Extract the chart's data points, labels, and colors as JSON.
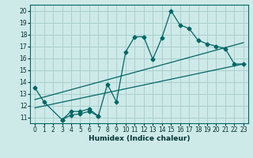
{
  "xlabel": "Humidex (Indice chaleur)",
  "background_color": "#ceeae8",
  "grid_color": "#aacfcd",
  "line_color": "#006666",
  "xlim": [
    -0.5,
    23.5
  ],
  "ylim": [
    10.5,
    20.5
  ],
  "yticks": [
    11,
    12,
    13,
    14,
    15,
    16,
    17,
    18,
    19,
    20
  ],
  "xticks": [
    0,
    1,
    2,
    3,
    4,
    5,
    6,
    7,
    8,
    9,
    10,
    11,
    12,
    13,
    14,
    15,
    16,
    17,
    18,
    19,
    20,
    21,
    22,
    23
  ],
  "series1_x": [
    0,
    1,
    3,
    4,
    5,
    6,
    7,
    8,
    9,
    10,
    11,
    12,
    13,
    14,
    15,
    16,
    17,
    18,
    19,
    20,
    21,
    22,
    23
  ],
  "series1_y": [
    13.5,
    12.3,
    10.8,
    11.5,
    11.5,
    11.7,
    11.1,
    13.8,
    12.3,
    16.5,
    17.8,
    17.8,
    15.9,
    17.7,
    20.0,
    18.8,
    18.5,
    17.5,
    17.2,
    17.0,
    16.8,
    15.5,
    15.5
  ],
  "series2_x": [
    3,
    4,
    5,
    6,
    7
  ],
  "series2_y": [
    10.8,
    11.2,
    11.3,
    11.5,
    11.1
  ],
  "line1_x": [
    0,
    23
  ],
  "line1_y": [
    11.8,
    15.5
  ],
  "line2_x": [
    0,
    23
  ],
  "line2_y": [
    12.5,
    17.3
  ]
}
